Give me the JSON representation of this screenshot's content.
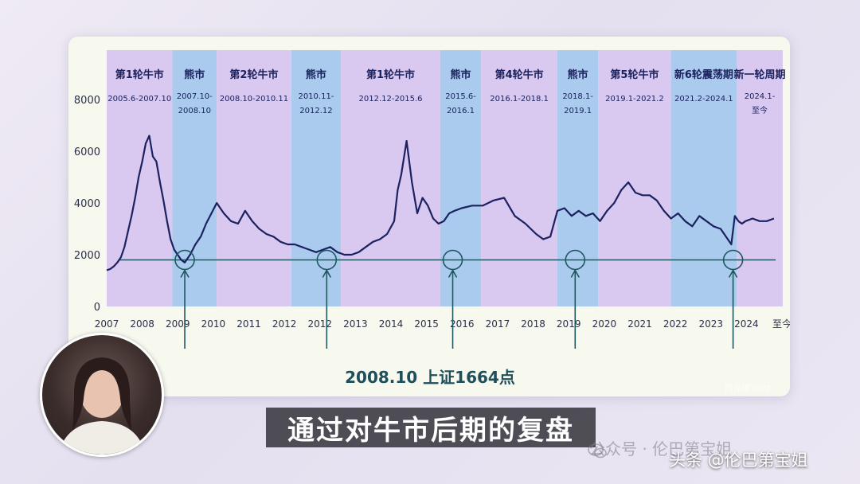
{
  "caption": "2008.10 上证1664点",
  "subtitle": "通过对牛市后期的复盘",
  "watermark_public": "公众号 · 伦巴第宝姐",
  "watermark_author": "头条 @伦巴第宝姐",
  "watermark_small": "同花顺i问财",
  "colors": {
    "bull": "#d9c8ef",
    "bear": "#aacbee",
    "line": "#1c2260",
    "baseline": "#1f5760",
    "phase_text": "#1c2260"
  },
  "chart_data": {
    "type": "line",
    "ylim": [
      0,
      8000
    ],
    "yticks": [
      0,
      2000,
      4000,
      6000,
      8000
    ],
    "xticks": [
      "2007",
      "2008",
      "2009",
      "2010",
      "2011",
      "2012",
      "2012",
      "2013",
      "2014",
      "2015",
      "2016",
      "2017",
      "2018",
      "2019",
      "2020",
      "2021",
      "2022",
      "2023",
      "2024",
      "至今"
    ],
    "phases": [
      {
        "title": "第1轮牛市",
        "range": "2005.6-2007.10",
        "kind": "bull",
        "start": 2007.0,
        "end": 2008.85
      },
      {
        "title": "熊市",
        "range": "2007.10-2008.10",
        "kind": "bear",
        "start": 2008.85,
        "end": 2010.1
      },
      {
        "title": "第2轮牛市",
        "range": "2008.10-2010.11",
        "kind": "bull",
        "start": 2010.1,
        "end": 2012.2
      },
      {
        "title": "熊市",
        "range": "2010.11-2012.12",
        "kind": "bear",
        "start": 2012.2,
        "end": 2013.6
      },
      {
        "title": "第1轮牛市",
        "range": "2012.12-2015.6",
        "kind": "bull",
        "start": 2013.6,
        "end": 2016.4
      },
      {
        "title": "熊市",
        "range": "2015.6-2016.1",
        "kind": "bear",
        "start": 2016.4,
        "end": 2017.55
      },
      {
        "title": "第4轮牛市",
        "range": "2016.1-2018.1",
        "kind": "bull",
        "start": 2017.55,
        "end": 2019.7
      },
      {
        "title": "熊市",
        "range": "2018.1-2019.1",
        "kind": "bear",
        "start": 2019.7,
        "end": 2020.85
      },
      {
        "title": "第5轮牛市",
        "range": "2019.1-2021.2",
        "kind": "bull",
        "start": 2020.85,
        "end": 2022.9
      },
      {
        "title": "新6轮震荡期",
        "range": "2021.2-2024.1",
        "kind": "bear",
        "start": 2022.9,
        "end": 2024.75
      },
      {
        "title": "新一轮周期",
        "range": "2024.1-至今",
        "kind": "bull",
        "start": 2024.75,
        "end": 2026.05
      }
    ],
    "baseline": 1800,
    "baseline_range": [
      2007.35,
      2025.85
    ],
    "markers": [
      2009.2,
      2013.2,
      2016.75,
      2020.2,
      2024.65
    ],
    "series": [
      {
        "x": [
          2007.0,
          2007.1,
          2007.2,
          2007.3,
          2007.4,
          2007.5,
          2007.6,
          2007.7,
          2007.8,
          2007.9,
          2008.0,
          2008.1,
          2008.2,
          2008.3,
          2008.4,
          2008.5,
          2008.6,
          2008.7,
          2008.8,
          2008.9,
          2009.0,
          2009.1,
          2009.2,
          2009.35,
          2009.5,
          2009.65,
          2009.8,
          2009.95,
          2010.1,
          2010.3,
          2010.5,
          2010.7,
          2010.9,
          2011.1,
          2011.3,
          2011.5,
          2011.7,
          2011.9,
          2012.1,
          2012.3,
          2012.5,
          2012.7,
          2012.9,
          2013.1,
          2013.3,
          2013.5,
          2013.7,
          2013.9,
          2014.1,
          2014.3,
          2014.5,
          2014.7,
          2014.9,
          2015.1,
          2015.2,
          2015.3,
          2015.45,
          2015.6,
          2015.75,
          2015.9,
          2016.05,
          2016.2,
          2016.35,
          2016.5,
          2016.65,
          2016.8,
          2017.0,
          2017.3,
          2017.6,
          2017.9,
          2018.2,
          2018.5,
          2018.8,
          2019.1,
          2019.3,
          2019.5,
          2019.7,
          2019.9,
          2020.1,
          2020.3,
          2020.5,
          2020.7,
          2020.9,
          2021.1,
          2021.3,
          2021.5,
          2021.7,
          2021.9,
          2022.1,
          2022.3,
          2022.5,
          2022.7,
          2022.9,
          2023.1,
          2023.3,
          2023.5,
          2023.7,
          2023.9,
          2024.1,
          2024.3,
          2024.45,
          2024.6,
          2024.7,
          2024.8,
          2024.9,
          2025.0,
          2025.2,
          2025.4,
          2025.6,
          2025.8
        ],
        "y": [
          1400,
          1450,
          1550,
          1700,
          1900,
          2300,
          2900,
          3500,
          4200,
          5000,
          5600,
          6300,
          6600,
          5800,
          5600,
          4800,
          4100,
          3300,
          2600,
          2200,
          2000,
          1800,
          1700,
          2000,
          2400,
          2700,
          3200,
          3600,
          4000,
          3600,
          3300,
          3200,
          3700,
          3300,
          3000,
          2800,
          2700,
          2500,
          2400,
          2400,
          2300,
          2200,
          2100,
          2200,
          2300,
          2100,
          2000,
          2000,
          2100,
          2300,
          2500,
          2600,
          2800,
          3300,
          4500,
          5100,
          6400,
          4800,
          3600,
          4200,
          3900,
          3400,
          3200,
          3300,
          3600,
          3700,
          3800,
          3900,
          3900,
          4100,
          4200,
          3500,
          3200,
          2800,
          2600,
          2700,
          3700,
          3800,
          3500,
          3700,
          3500,
          3600,
          3300,
          3700,
          4000,
          4500,
          4800,
          4400,
          4300,
          4300,
          4100,
          3700,
          3400,
          3600,
          3300,
          3100,
          3500,
          3300,
          3100,
          3000,
          2700,
          2400,
          3500,
          3300,
          3200,
          3300,
          3400,
          3300,
          3300,
          3400
        ]
      }
    ]
  }
}
